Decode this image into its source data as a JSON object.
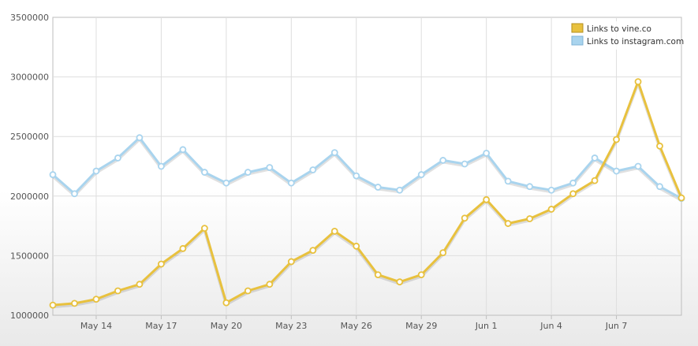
{
  "chart_data": {
    "type": "line",
    "title": "",
    "xlabel": "",
    "ylabel": "",
    "ylim": [
      1000000,
      3500000
    ],
    "y_ticks": [
      "3500000",
      "3000000",
      "2500000",
      "2000000",
      "1500000",
      "1000000"
    ],
    "x_tick_labels": [
      "May 14",
      "May 17",
      "May 20",
      "May 23",
      "May 26",
      "May 29",
      "Jun 1",
      "Jun 4",
      "Jun 7"
    ],
    "x": [
      "May 12",
      "May 13",
      "May 14",
      "May 15",
      "May 16",
      "May 17",
      "May 18",
      "May 19",
      "May 20",
      "May 21",
      "May 22",
      "May 23",
      "May 24",
      "May 25",
      "May 26",
      "May 27",
      "May 28",
      "May 29",
      "May 30",
      "May 31",
      "Jun 1",
      "Jun 2",
      "Jun 3",
      "Jun 4",
      "Jun 5",
      "Jun 6",
      "Jun 7",
      "Jun 8",
      "Jun 9",
      "Jun 10"
    ],
    "grid": true,
    "legend_position": "top-right",
    "series": [
      {
        "name": "Links to vine.co",
        "color": "#e8c13e",
        "values": [
          1085000,
          1100000,
          1135000,
          1205000,
          1260000,
          1430000,
          1560000,
          1730000,
          1105000,
          1205000,
          1260000,
          1450000,
          1545000,
          1705000,
          1580000,
          1340000,
          1280000,
          1340000,
          1525000,
          1815000,
          1970000,
          1770000,
          1810000,
          1890000,
          2020000,
          2130000,
          2475000,
          2960000,
          2420000,
          1985000
        ]
      },
      {
        "name": "Links to instagram.com",
        "color": "#a9d4ee",
        "values": [
          2180000,
          2020000,
          2210000,
          2320000,
          2490000,
          2250000,
          2390000,
          2200000,
          2110000,
          2200000,
          2240000,
          2110000,
          2220000,
          2365000,
          2170000,
          2075000,
          2050000,
          2180000,
          2300000,
          2270000,
          2360000,
          2125000,
          2080000,
          2050000,
          2110000,
          2320000,
          2210000,
          2250000,
          2080000,
          1980000
        ]
      }
    ]
  }
}
